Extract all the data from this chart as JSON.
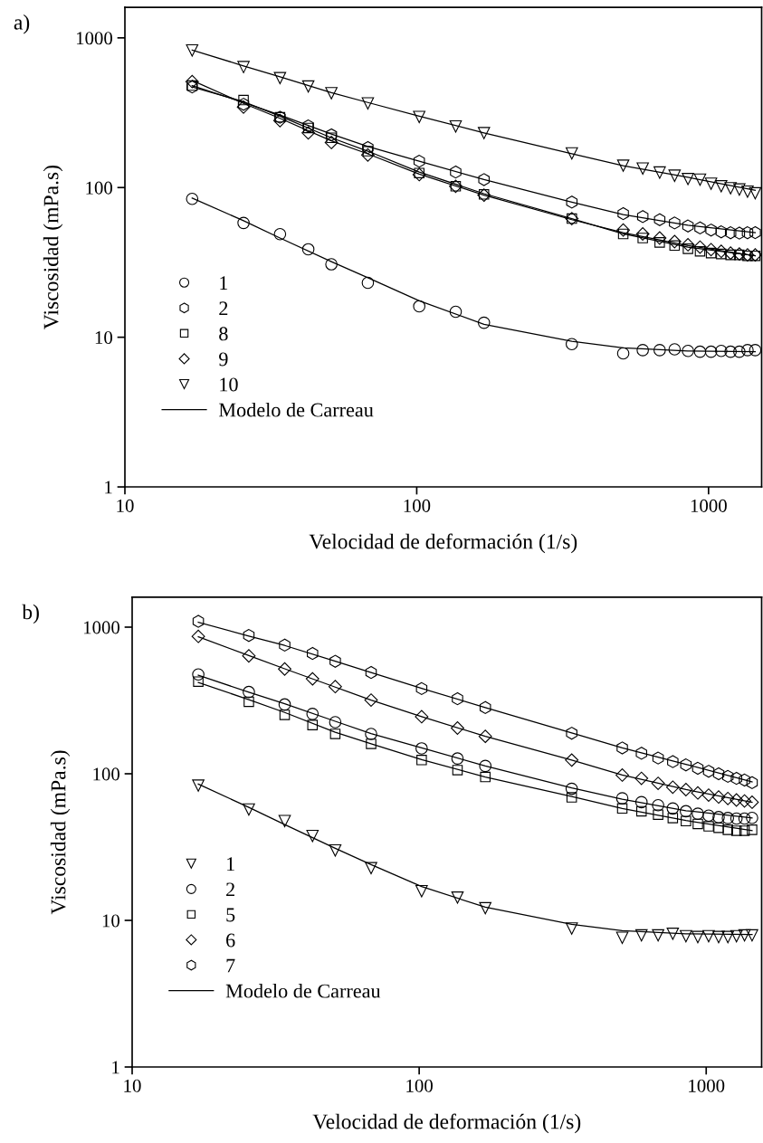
{
  "chart_data": [
    {
      "type": "scatter",
      "title": "a)",
      "xlabel": "Velocidad de deformación (1/s)",
      "ylabel": "Viscosidad (mPa.s)",
      "log": "xy",
      "xlim": [
        10,
        1520
      ],
      "ylim": [
        1,
        1600
      ],
      "xticks": [
        10,
        100,
        1000
      ],
      "yticks": [
        1,
        10,
        100,
        1000
      ],
      "grid": false,
      "legend": "bottom left",
      "x": [
        17,
        25.5,
        34,
        42.5,
        51,
        68,
        102,
        136,
        170,
        340,
        510,
        595,
        680,
        765,
        850,
        935,
        1020,
        1105,
        1190,
        1275,
        1360,
        1445
      ],
      "series": [
        {
          "name": "1",
          "type": "scatter",
          "marker": "circle",
          "color": "#000000",
          "values": [
            84,
            58,
            48.8,
            38.7,
            30.7,
            23.1,
            16.1,
            14.8,
            12.5,
            9.0,
            7.8,
            8.2,
            8.2,
            8.3,
            8.1,
            8.0,
            8.0,
            8.1,
            8.0,
            8.0,
            8.2,
            8.2
          ]
        },
        {
          "name": "2",
          "type": "scatter",
          "color": "#000000",
          "values": [
            470,
            360,
            295,
            258,
            225,
            185,
            150,
            127,
            113,
            80,
            67,
            64,
            61,
            58,
            55.4,
            53.8,
            52,
            50.6,
            49.9,
            49.6,
            49.9,
            50
          ]
        },
        {
          "name": "8",
          "type": "scatter",
          "marker": "square",
          "color": "#000000",
          "values": [
            480,
            384,
            295,
            250,
            215,
            175,
            125,
            102,
            90,
            62,
            49,
            46,
            43,
            41,
            39,
            37.5,
            36.5,
            36,
            35.5,
            35.5,
            35,
            35
          ]
        },
        {
          "name": "9",
          "type": "scatter",
          "marker": "diamond",
          "color": "#000000",
          "values": [
            510,
            345,
            280,
            232,
            200,
            165,
            122,
            102,
            89,
            62,
            52,
            49,
            46,
            43.5,
            41.5,
            40,
            38.5,
            37.5,
            36.5,
            36,
            35.5,
            35.5
          ]
        },
        {
          "name": "10",
          "type": "scatter",
          "marker": "triangle_down",
          "color": "#000000",
          "values": [
            824,
            638,
            538,
            473,
            427,
            365,
            296,
            256,
            231,
            169,
            140,
            134,
            126,
            120,
            114,
            113,
            106,
            102,
            99,
            97,
            94,
            91.5
          ]
        },
        {
          "name": "Modelo de Carreau",
          "type": "line",
          "marker": "none",
          "line_style": "solid",
          "color": "#000000",
          "x": [
            17,
            25.5,
            34,
            51,
            68,
            102,
            170,
            340,
            510,
            850,
            1445
          ],
          "values": [
            85,
            60,
            46,
            32,
            25,
            17.5,
            12.2,
            9.4,
            8.5,
            8.1,
            8.0
          ]
        },
        {
          "type": "line",
          "marker": "none",
          "line_style": "solid",
          "color": "#000000",
          "x": [
            17,
            25.5,
            34,
            51,
            68,
            102,
            170,
            340,
            510,
            850,
            1445
          ],
          "values": [
            480,
            370,
            305,
            228,
            188,
            150,
            113,
            80,
            66,
            56,
            50
          ]
        },
        {
          "type": "line",
          "marker": "none",
          "line_style": "solid",
          "color": "#000000",
          "x": [
            17,
            25.5,
            34,
            51,
            68,
            102,
            170,
            340,
            510,
            850,
            1445
          ],
          "values": [
            470,
            375,
            300,
            215,
            175,
            127,
            91,
            62,
            49,
            40,
            35
          ]
        },
        {
          "type": "line",
          "marker": "none",
          "line_style": "solid",
          "color": "#000000",
          "x": [
            17,
            25.5,
            34,
            51,
            68,
            102,
            170,
            340,
            510,
            850,
            1445
          ],
          "values": [
            520,
            365,
            290,
            205,
            168,
            123,
            89,
            61,
            50,
            41,
            35
          ]
        },
        {
          "type": "line",
          "marker": "none",
          "line_style": "solid",
          "color": "#000000",
          "x": [
            17,
            25.5,
            34,
            51,
            68,
            102,
            170,
            340,
            510,
            850,
            1445
          ],
          "values": [
            830,
            650,
            550,
            430,
            370,
            300,
            232,
            168,
            140,
            117,
            96
          ]
        }
      ]
    },
    {
      "type": "scatter",
      "title": "b)",
      "xlabel": "Velocidad de deformación (1/s)",
      "ylabel": "Viscosidad (mPa.s)",
      "log": "xy",
      "xlim": [
        10,
        1560
      ],
      "ylim": [
        1,
        1600
      ],
      "xticks": [
        10,
        100,
        1000
      ],
      "yticks": [
        1,
        10,
        100,
        1000
      ],
      "grid": false,
      "legend": "bottom left",
      "x": [
        17,
        25.5,
        34,
        42.5,
        51,
        68,
        102,
        136,
        170,
        340,
        510,
        595,
        680,
        765,
        850,
        935,
        1020,
        1105,
        1190,
        1275,
        1360,
        1445
      ],
      "series": [
        {
          "name": "1",
          "type": "scatter",
          "marker": "triangle_down",
          "color": "#000000",
          "values": [
            83,
            57,
            47.6,
            37.6,
            30,
            22.7,
            15.8,
            14.3,
            12.1,
            8.8,
            7.6,
            7.9,
            7.9,
            8.1,
            7.8,
            7.7,
            7.8,
            7.7,
            7.7,
            7.8,
            7.9,
            7.9
          ]
        },
        {
          "name": "2",
          "type": "scatter",
          "marker": "circle",
          "color": "#000000",
          "values": [
            476,
            361,
            297,
            256,
            225,
            187,
            149,
            127,
            113,
            79,
            68,
            64,
            61,
            58,
            55.5,
            53.4,
            51.8,
            50.6,
            49.9,
            49.5,
            49.5,
            50
          ]
        },
        {
          "name": "5",
          "type": "scatter",
          "marker": "square",
          "color": "#000000",
          "values": [
            425,
            310,
            252,
            215,
            187,
            160,
            124,
            106,
            95,
            69,
            58,
            55.5,
            52.6,
            49.9,
            47.6,
            45.5,
            43.8,
            42.8,
            41.5,
            40.9,
            40.9,
            41.5
          ]
        },
        {
          "name": "6",
          "type": "scatter",
          "marker": "diamond",
          "color": "#000000",
          "values": [
            865,
            637,
            518,
            444,
            393,
            318,
            245,
            205,
            180,
            124,
            98,
            93,
            86,
            81,
            78,
            74,
            71.5,
            69.4,
            67.8,
            66.2,
            65.2,
            64
          ]
        },
        {
          "name": "7",
          "type": "scatter",
          "color": "#000000",
          "values": [
            1096,
            878,
            754,
            662,
            585,
            491,
            381,
            325,
            283,
            189,
            150,
            138,
            128,
            121,
            115,
            109,
            104,
            100,
            96,
            93,
            90.6,
            87
          ]
        },
        {
          "name": "Modelo de Carreau",
          "type": "line",
          "marker": "none",
          "line_style": "solid",
          "color": "#000000",
          "x": [
            17,
            25.5,
            34,
            51,
            68,
            102,
            170,
            340,
            510,
            850,
            1445
          ],
          "values": [
            85,
            59,
            45,
            31,
            24,
            17,
            12.3,
            9.4,
            8.5,
            8.1,
            8.0
          ]
        },
        {
          "type": "line",
          "marker": "none",
          "line_style": "solid",
          "color": "#000000",
          "x": [
            17,
            25.5,
            34,
            51,
            68,
            102,
            170,
            340,
            510,
            850,
            1445
          ],
          "values": [
            470,
            360,
            300,
            228,
            188,
            150,
            113,
            80,
            67,
            56,
            50
          ]
        },
        {
          "type": "line",
          "marker": "none",
          "line_style": "solid",
          "color": "#000000",
          "x": [
            17,
            25.5,
            34,
            51,
            68,
            102,
            170,
            340,
            510,
            850,
            1445
          ],
          "values": [
            420,
            320,
            262,
            192,
            160,
            125,
            95,
            70,
            58,
            48,
            41
          ]
        },
        {
          "type": "line",
          "marker": "none",
          "line_style": "solid",
          "color": "#000000",
          "x": [
            17,
            25.5,
            34,
            51,
            68,
            102,
            170,
            340,
            510,
            850,
            1445
          ],
          "values": [
            860,
            640,
            520,
            390,
            318,
            245,
            180,
            124,
            98,
            78,
            64
          ]
        },
        {
          "type": "line",
          "marker": "none",
          "line_style": "solid",
          "color": "#000000",
          "x": [
            17,
            25.5,
            34,
            51,
            68,
            102,
            170,
            340,
            510,
            850,
            1445
          ],
          "values": [
            1080,
            870,
            750,
            585,
            490,
            382,
            283,
            190,
            150,
            116,
            88
          ]
        }
      ]
    }
  ]
}
